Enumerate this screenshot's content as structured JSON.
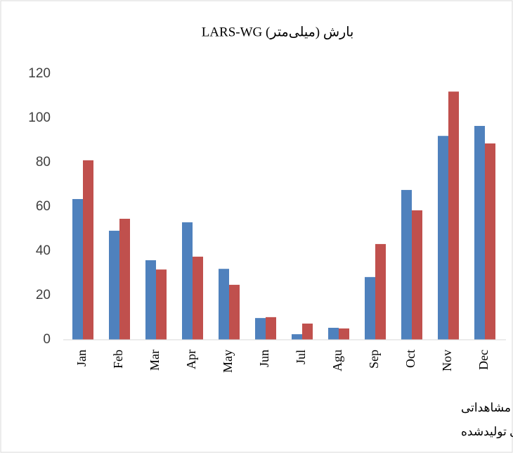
{
  "chart_data": {
    "type": "bar",
    "title": "بارش (میلی‌متر) LARS-WG",
    "categories": [
      "Jan",
      "Feb",
      "Mar",
      "Apr",
      "May",
      "Jun",
      "Jul",
      "Agu",
      "Sep",
      "Oct",
      "Nov",
      "Dec"
    ],
    "series": [
      {
        "name": "داده‌های مشاهداتی",
        "color": "#4f81bd",
        "values": [
          63.5,
          49.2,
          35.9,
          53,
          32,
          9.8,
          2.5,
          5.4,
          28.3,
          67.6,
          92,
          96.5
        ]
      },
      {
        "name": "داده‌های تولیدشده",
        "color": "#c0504d",
        "values": [
          81,
          54.6,
          31.7,
          37.5,
          24.8,
          10.2,
          7.3,
          5.1,
          43.2,
          58.4,
          112,
          88.6
        ]
      }
    ],
    "ylim": [
      0,
      120
    ],
    "yticks": [
      0,
      20,
      40,
      60,
      80,
      100,
      120
    ],
    "grid": false
  }
}
